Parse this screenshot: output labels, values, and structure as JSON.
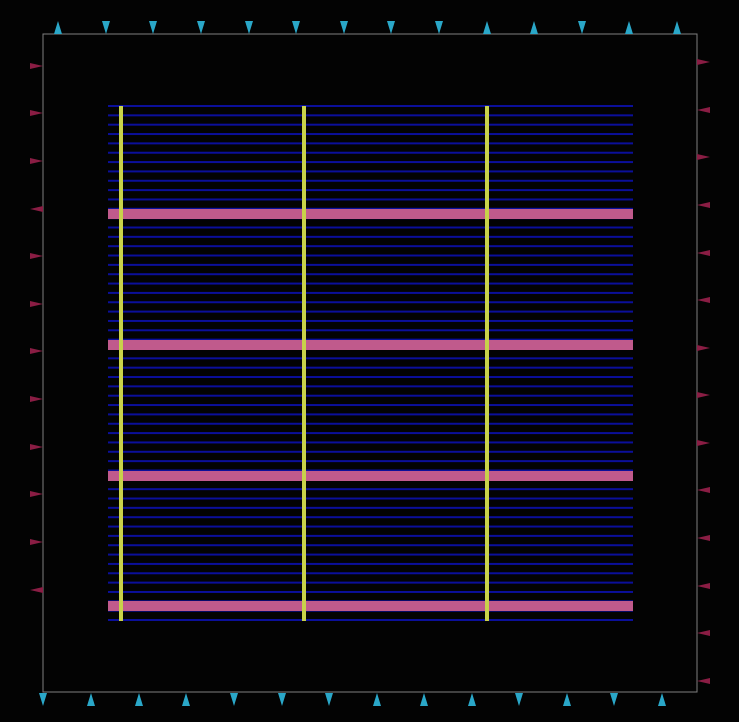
{
  "layout": {
    "colors": {
      "background": "#030303",
      "die_outline": "#7f7f7f",
      "metal_rows": "#0b0f9a",
      "power_straps": "#c05a8c",
      "vertical_straps": "#c8d24a",
      "pins_top_bottom": "#2aa7c8",
      "pins_left_right": "#8a1d44"
    },
    "pin_icon": "triangle-pin-icon",
    "row_count": 56,
    "vertical_strap_count": 3,
    "horizontal_strap_count": 4,
    "pins": {
      "top": {
        "count": 14,
        "direction": "mixed"
      },
      "bottom": {
        "count": 14,
        "direction": "mixed"
      },
      "left": {
        "count": 12,
        "direction": "mixed"
      },
      "right": {
        "count": 14,
        "direction": "mixed"
      }
    }
  }
}
